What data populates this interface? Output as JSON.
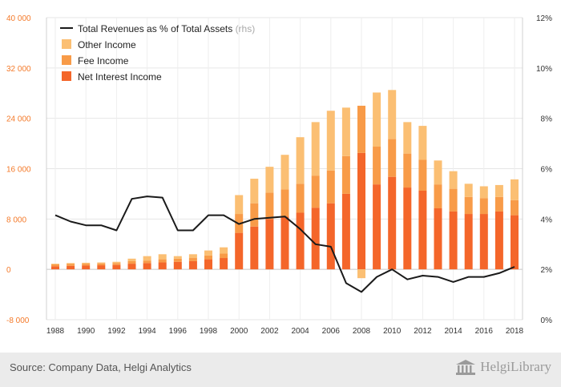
{
  "chart_data": {
    "type": "bar",
    "stacked": true,
    "x": [
      1988,
      1989,
      1990,
      1991,
      1992,
      1993,
      1994,
      1995,
      1996,
      1997,
      1998,
      1999,
      2000,
      2001,
      2002,
      2003,
      2004,
      2005,
      2006,
      2007,
      2008,
      2009,
      2010,
      2011,
      2012,
      2013,
      2014,
      2015,
      2016,
      2017,
      2018
    ],
    "x_tick_labels": [
      "1988",
      "1990",
      "1992",
      "1994",
      "1996",
      "1998",
      "2000",
      "2002",
      "2004",
      "2006",
      "2008",
      "2010",
      "2012",
      "2014",
      "2016",
      "2018"
    ],
    "y_left": {
      "ylim": [
        -8000,
        40000
      ],
      "ticks": [
        -8000,
        0,
        8000,
        16000,
        24000,
        32000,
        40000
      ],
      "tick_labels": [
        "-8 000",
        "0",
        "8 000",
        "16 000",
        "24 000",
        "32 000",
        "40 000"
      ],
      "color": "#f47a2a"
    },
    "y_right": {
      "ylim": [
        0,
        12
      ],
      "ticks": [
        0,
        2,
        4,
        6,
        8,
        10,
        12
      ],
      "tick_labels": [
        "0%",
        "2%",
        "4%",
        "6%",
        "8%",
        "10%",
        "12%"
      ]
    },
    "grid": true,
    "legend_placement": "top-left",
    "series": [
      {
        "name": "Net Interest Income",
        "color": "#f4662a",
        "values": [
          500,
          550,
          600,
          650,
          700,
          900,
          1000,
          1100,
          1200,
          1300,
          1600,
          1800,
          5800,
          6800,
          8000,
          8400,
          9000,
          9800,
          10500,
          12000,
          18500,
          13500,
          14700,
          13000,
          12500,
          9700,
          9200,
          8800,
          8800,
          9200,
          8600
        ]
      },
      {
        "name": "Fee Income",
        "color": "#f89b48",
        "values": [
          300,
          300,
          300,
          300,
          300,
          400,
          400,
          500,
          500,
          500,
          600,
          700,
          3000,
          3700,
          4200,
          4300,
          4600,
          5100,
          5200,
          6000,
          7500,
          6000,
          6000,
          5400,
          4900,
          3800,
          3600,
          2700,
          2500,
          2300,
          2400
        ]
      },
      {
        "name": "Other Income",
        "color": "#fbbf73",
        "values": [
          100,
          150,
          150,
          150,
          200,
          400,
          700,
          800,
          400,
          600,
          800,
          1000,
          3000,
          3900,
          4100,
          5500,
          7400,
          8500,
          9500,
          7700,
          -1400,
          8600,
          7800,
          5000,
          5400,
          3800,
          2800,
          2100,
          1900,
          1900,
          3300
        ]
      },
      {
        "name": "Total Revenues as % of Total Assets",
        "axis_note": "(rhs)",
        "axis": "right",
        "type": "line",
        "color": "#1a1a1a",
        "values": [
          4.15,
          3.9,
          3.75,
          3.75,
          3.55,
          4.8,
          4.9,
          4.85,
          3.55,
          3.55,
          4.15,
          4.15,
          3.8,
          4.0,
          4.05,
          4.1,
          3.6,
          3.0,
          2.9,
          1.45,
          1.1,
          1.7,
          2.0,
          1.6,
          1.75,
          1.7,
          1.5,
          1.7,
          1.7,
          1.85,
          2.1
        ]
      }
    ]
  },
  "footer": {
    "source": "Source: Company Data, Helgi Analytics",
    "logo": "HelgiLibrary"
  }
}
